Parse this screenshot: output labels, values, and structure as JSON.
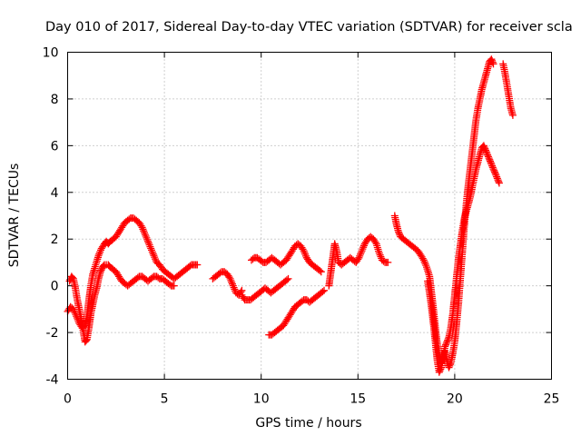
{
  "chart_data": {
    "type": "scatter",
    "title": "Day 010 of 2017, Sidereal Day-to-day VTEC variation (SDTVAR) for receiver scla",
    "xlabel": "GPS time / hours",
    "ylabel": "SDTVAR / TECUs",
    "xlim": [
      0,
      25
    ],
    "ylim": [
      -4,
      10
    ],
    "xticks": [
      0,
      5,
      10,
      15,
      20,
      25
    ],
    "yticks": [
      -4,
      -2,
      0,
      2,
      4,
      6,
      8,
      10
    ],
    "xtick_labels": [
      "0",
      "5",
      "10",
      "15",
      "20",
      "25"
    ],
    "ytick_labels": [
      "-4",
      "-2",
      "0",
      "2",
      "4",
      "6",
      "8",
      "10"
    ],
    "grid": true,
    "marker": "plus",
    "color": "#ff0000",
    "series": [
      {
        "x": [
          0.0,
          0.15,
          0.3,
          0.45,
          0.6,
          0.75,
          0.9,
          1.0,
          1.1,
          1.2,
          1.3,
          1.45,
          1.6,
          1.75,
          1.9,
          2.0,
          2.1,
          2.2,
          2.35,
          2.5,
          2.65,
          2.8,
          2.95,
          3.1,
          3.25,
          3.4,
          3.55,
          3.7,
          3.85,
          4.0,
          4.15,
          4.3,
          4.45,
          4.6,
          4.75,
          4.9,
          5.05,
          5.2,
          5.35,
          5.5,
          5.65,
          5.8,
          5.95,
          6.1,
          6.25,
          6.4,
          6.55,
          6.7
        ],
        "y": [
          -1.1,
          -0.9,
          -1.0,
          -1.3,
          -1.6,
          -1.8,
          -1.7,
          -1.3,
          -0.6,
          0.0,
          0.5,
          0.9,
          1.3,
          1.6,
          1.8,
          1.9,
          1.8,
          1.9,
          2.0,
          2.1,
          2.3,
          2.5,
          2.7,
          2.8,
          2.9,
          2.9,
          2.8,
          2.7,
          2.5,
          2.2,
          1.9,
          1.6,
          1.3,
          1.0,
          0.9,
          0.7,
          0.6,
          0.5,
          0.4,
          0.3,
          0.4,
          0.5,
          0.6,
          0.7,
          0.8,
          0.9,
          0.9,
          0.9
        ]
      },
      {
        "x": [
          0.1,
          0.2,
          0.3,
          0.4,
          0.5,
          0.6,
          0.7,
          0.8,
          0.9,
          1.0,
          1.1,
          1.2,
          1.3,
          1.4,
          1.5,
          1.6,
          1.7,
          1.8,
          1.9,
          2.0,
          2.1,
          2.2,
          2.35,
          2.5,
          2.65,
          2.8,
          2.95,
          3.1,
          3.25,
          3.4,
          3.55,
          3.7,
          3.85,
          4.0,
          4.15,
          4.3,
          4.45,
          4.6,
          4.75,
          4.9,
          5.05,
          5.2,
          5.35,
          5.5
        ],
        "y": [
          0.2,
          0.4,
          0.3,
          -0.1,
          -0.6,
          -1.0,
          -1.4,
          -1.9,
          -2.4,
          -2.3,
          -1.8,
          -1.2,
          -0.8,
          -0.4,
          -0.1,
          0.3,
          0.6,
          0.8,
          0.9,
          0.9,
          0.9,
          0.8,
          0.7,
          0.6,
          0.4,
          0.2,
          0.1,
          0.0,
          0.1,
          0.2,
          0.3,
          0.4,
          0.4,
          0.3,
          0.2,
          0.3,
          0.4,
          0.4,
          0.3,
          0.3,
          0.2,
          0.1,
          0.0,
          0.0
        ]
      },
      {
        "x": [
          7.5,
          7.65,
          7.8,
          7.95,
          8.1,
          8.25,
          8.4,
          8.55,
          8.7,
          8.85,
          9.0
        ],
        "y": [
          0.3,
          0.4,
          0.5,
          0.6,
          0.6,
          0.5,
          0.3,
          0.0,
          -0.3,
          -0.4,
          -0.2
        ]
      },
      {
        "x": [
          9.5,
          9.65,
          9.8,
          9.95,
          10.1,
          10.25,
          10.4,
          10.55,
          10.7,
          10.85,
          11.0,
          11.15,
          11.3,
          11.45,
          11.6,
          11.75,
          11.9,
          12.05,
          12.2,
          12.35,
          12.5,
          12.65,
          12.8,
          12.95,
          13.1
        ],
        "y": [
          1.1,
          1.2,
          1.2,
          1.1,
          1.0,
          1.0,
          1.1,
          1.2,
          1.1,
          1.0,
          0.9,
          1.0,
          1.1,
          1.3,
          1.5,
          1.7,
          1.8,
          1.7,
          1.5,
          1.2,
          1.0,
          0.9,
          0.8,
          0.7,
          0.6
        ]
      },
      {
        "x": [
          9.0,
          9.15,
          9.3,
          9.45,
          9.6,
          9.75,
          9.9,
          10.05,
          10.2,
          10.35,
          10.5,
          10.65,
          10.8,
          10.95,
          11.1,
          11.25,
          11.4
        ],
        "y": [
          -0.4,
          -0.6,
          -0.6,
          -0.6,
          -0.5,
          -0.4,
          -0.3,
          -0.2,
          -0.1,
          -0.2,
          -0.3,
          -0.2,
          -0.1,
          0.0,
          0.1,
          0.2,
          0.3
        ]
      },
      {
        "x": [
          10.4,
          10.55,
          10.7,
          10.85,
          11.0,
          11.15,
          11.3,
          11.45,
          11.6,
          11.75,
          11.9,
          12.05,
          12.2,
          12.35,
          12.5,
          12.65,
          12.8,
          12.95,
          13.1,
          13.25
        ],
        "y": [
          -2.1,
          -2.1,
          -2.0,
          -1.9,
          -1.8,
          -1.7,
          -1.5,
          -1.3,
          -1.1,
          -0.9,
          -0.8,
          -0.7,
          -0.6,
          -0.6,
          -0.7,
          -0.6,
          -0.5,
          -0.4,
          -0.3,
          -0.2
        ]
      },
      {
        "x": [
          13.5,
          13.6,
          13.7,
          13.8,
          13.9,
          14.0,
          14.15,
          14.3,
          14.45,
          14.6,
          14.75,
          14.9,
          15.05,
          15.2,
          15.35,
          15.5,
          15.65,
          15.8,
          15.95,
          16.1,
          16.25,
          16.4,
          16.55
        ],
        "y": [
          0.0,
          0.6,
          1.2,
          1.8,
          1.5,
          1.0,
          0.9,
          1.0,
          1.1,
          1.2,
          1.1,
          1.0,
          1.2,
          1.5,
          1.8,
          2.0,
          2.1,
          2.0,
          1.8,
          1.4,
          1.1,
          1.0,
          1.0
        ]
      },
      {
        "x": [
          16.9,
          17.0,
          17.1,
          17.2,
          17.35,
          17.5,
          17.65,
          17.8,
          17.95,
          18.1,
          18.25,
          18.4,
          18.55,
          18.7,
          18.8,
          18.9,
          19.0,
          19.1,
          19.2,
          19.3,
          19.4,
          19.5,
          19.6,
          19.7,
          19.8,
          19.9,
          20.0,
          20.1,
          20.2,
          20.3,
          20.4,
          20.5,
          20.6,
          20.7,
          20.8,
          20.9,
          21.0,
          21.1,
          21.2,
          21.3,
          21.4,
          21.5,
          21.6,
          21.7,
          21.8,
          21.9,
          22.0,
          22.1,
          22.2,
          22.3
        ],
        "y": [
          3.0,
          2.6,
          2.3,
          2.1,
          2.0,
          1.9,
          1.8,
          1.7,
          1.6,
          1.5,
          1.3,
          1.1,
          0.8,
          0.4,
          -0.3,
          -1.0,
          -1.8,
          -2.5,
          -3.0,
          -3.3,
          -3.0,
          -2.6,
          -2.4,
          -2.2,
          -1.8,
          -1.2,
          -0.4,
          0.4,
          1.2,
          1.8,
          2.4,
          2.9,
          3.2,
          3.5,
          3.8,
          4.2,
          4.6,
          5.0,
          5.3,
          5.6,
          5.9,
          6.0,
          5.8,
          5.6,
          5.4,
          5.2,
          5.0,
          4.8,
          4.6,
          4.4
        ]
      },
      {
        "x": [
          18.6,
          18.7,
          18.8,
          18.9,
          19.0,
          19.1,
          19.2,
          19.3,
          19.4,
          19.5,
          19.6,
          19.7,
          19.8,
          19.9,
          20.0,
          20.1,
          20.2,
          20.3,
          20.4,
          20.5,
          20.6,
          20.7,
          20.8,
          20.9,
          21.0,
          21.1,
          21.2,
          21.3,
          21.4,
          21.5,
          21.6,
          21.7,
          21.8,
          21.9,
          22.0
        ],
        "y": [
          0.2,
          -0.3,
          -0.9,
          -1.6,
          -2.4,
          -3.2,
          -3.7,
          -3.5,
          -3.1,
          -2.8,
          -3.2,
          -3.5,
          -3.3,
          -2.9,
          -2.4,
          -1.6,
          -0.7,
          0.4,
          1.5,
          2.6,
          3.5,
          4.3,
          5.0,
          5.7,
          6.4,
          7.1,
          7.6,
          8.0,
          8.4,
          8.7,
          9.0,
          9.3,
          9.6,
          9.7,
          9.5
        ]
      },
      {
        "x": [
          22.5,
          22.6,
          22.7,
          22.8,
          22.9,
          23.0
        ],
        "y": [
          9.5,
          9.1,
          8.6,
          8.1,
          7.6,
          7.3
        ]
      }
    ]
  }
}
